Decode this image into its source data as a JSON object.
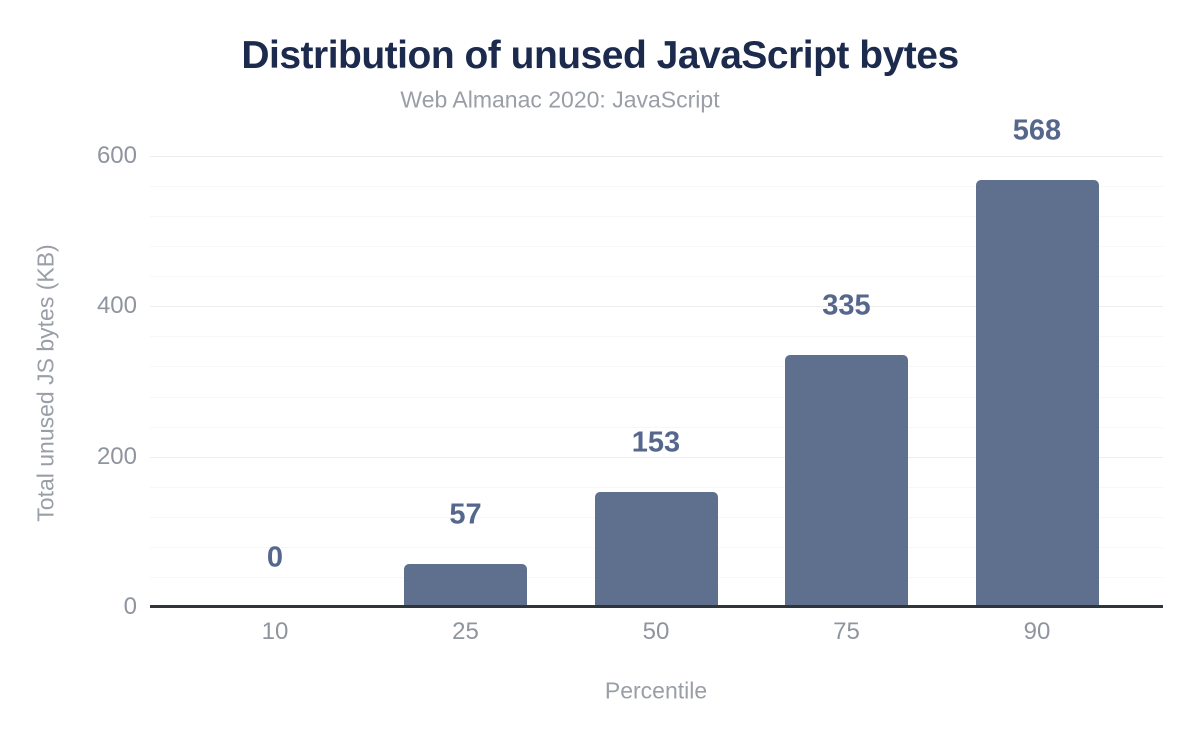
{
  "chart_data": {
    "type": "bar",
    "title": "Distribution of unused JavaScript bytes",
    "subtitle": "Web Almanac 2020: JavaScript",
    "categories": [
      "10",
      "25",
      "50",
      "75",
      "90"
    ],
    "values": [
      0,
      57,
      153,
      335,
      568
    ],
    "xlabel": "Percentile",
    "ylabel": "Total unused JS bytes (KB)",
    "ylim": [
      0,
      620
    ],
    "yticks": [
      0,
      200,
      400,
      600
    ],
    "minor_gridline_step": 40,
    "grid": "horizontal-only",
    "legend": "none",
    "value_labels": "above-bars",
    "colors": {
      "bar": "#5f6f8e",
      "value_label": "#55678c",
      "title": "#1c2b4d",
      "subtitle": "#9a9ea6",
      "tick_label": "#8f959f",
      "axis_line": "#30343b",
      "major_gridline": "#ededed",
      "minor_gridline": "#f7f7f7",
      "background": "#ffffff"
    }
  }
}
